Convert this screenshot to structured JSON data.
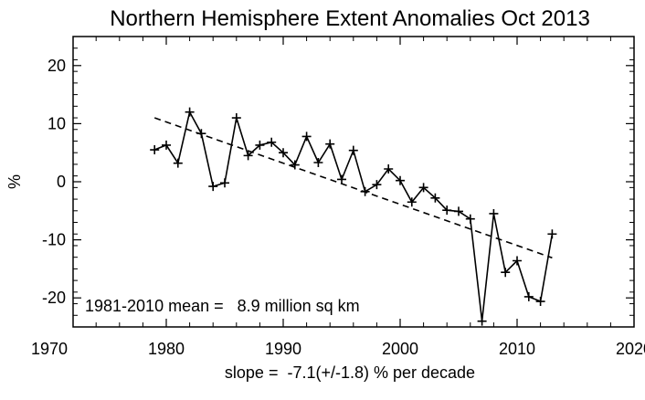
{
  "chart_data": {
    "type": "line",
    "title": "Northern Hemisphere Extent Anomalies Oct 2013",
    "ylabel": "%",
    "xlim": [
      1970,
      2020
    ],
    "ylim": [
      -25,
      25
    ],
    "xticks": [
      1970,
      1980,
      1990,
      2000,
      2010,
      2020
    ],
    "yticks": [
      -20,
      -10,
      0,
      10,
      20
    ],
    "x_tick_labels": [
      "1970",
      "1980",
      "1990",
      "2000",
      "2010",
      "2020"
    ],
    "y_tick_labels": [
      "-20",
      "-10",
      "0",
      "10",
      "20"
    ],
    "grid": false,
    "annotations": {
      "mean": "1981-2010 mean =   8.9 million sq km",
      "slope": "slope =  -7.1(+/-1.8) % per decade"
    },
    "series": [
      {
        "style": "solid-with-plus-markers",
        "x": [
          1979,
          1980,
          1981,
          1982,
          1983,
          1984,
          1985,
          1986,
          1987,
          1988,
          1989,
          1990,
          1991,
          1992,
          1993,
          1994,
          1995,
          1996,
          1997,
          1998,
          1999,
          2000,
          2001,
          2002,
          2003,
          2004,
          2005,
          2006,
          2007,
          2008,
          2009,
          2010,
          2011,
          2012,
          2013
        ],
        "y": [
          5.5,
          6.3,
          3.2,
          12.0,
          8.3,
          -0.8,
          -0.2,
          11.0,
          4.5,
          6.3,
          6.8,
          5.0,
          2.9,
          7.8,
          3.3,
          6.5,
          0.4,
          5.4,
          -1.7,
          -0.5,
          2.2,
          0.2,
          -3.5,
          -1.0,
          -2.8,
          -4.9,
          -5.1,
          -6.4,
          -24.0,
          -5.5,
          -15.6,
          -13.6,
          -19.8,
          -20.6,
          -9.0
        ]
      },
      {
        "style": "dashed-trend",
        "x": [
          1979,
          2013
        ],
        "y": [
          11.0,
          -13.1
        ]
      }
    ]
  }
}
